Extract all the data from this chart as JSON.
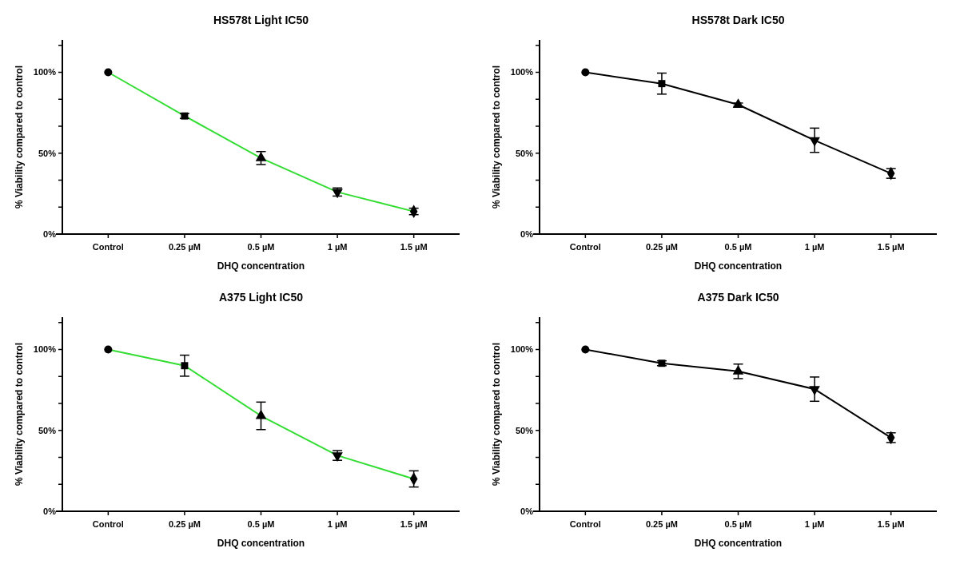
{
  "chart_data": [
    {
      "type": "line",
      "title": "HS578t Light IC50",
      "xlabel": "DHQ concentration",
      "ylabel": "% Viability compared to control",
      "categories": [
        "Control",
        "0.25 µM",
        "0.5 µM",
        "1 µM",
        "1.5 µM"
      ],
      "ylim": [
        0,
        120
      ],
      "yticks": [
        {
          "value": 0,
          "label": "0%"
        },
        {
          "value": 16.67,
          "label": null
        },
        {
          "value": 33.33,
          "label": null
        },
        {
          "value": 50,
          "label": "50%"
        },
        {
          "value": 66.67,
          "label": null
        },
        {
          "value": 83.33,
          "label": null
        },
        {
          "value": 100,
          "label": "100%"
        },
        {
          "value": 116.67,
          "label": null
        }
      ],
      "grid": false,
      "series": [
        {
          "type": "line",
          "color": "#33dd33",
          "marker": "none",
          "values": [
            100,
            73,
            47,
            26,
            14
          ]
        },
        {
          "type": "scatter",
          "color": "#000000",
          "marker": "circle",
          "values": [
            100,
            null,
            null,
            null,
            null
          ],
          "errors": [
            null,
            null,
            null,
            null,
            null
          ]
        },
        {
          "type": "scatter",
          "color": "#000000",
          "marker": "square",
          "values": [
            null,
            73,
            null,
            null,
            null
          ],
          "errors": [
            null,
            1.5,
            null,
            null,
            null
          ]
        },
        {
          "type": "scatter",
          "color": "#000000",
          "marker": "triangle",
          "values": [
            null,
            null,
            47,
            null,
            null
          ],
          "errors": [
            null,
            null,
            4,
            null,
            null
          ]
        },
        {
          "type": "scatter",
          "color": "#000000",
          "marker": "triangle-down",
          "values": [
            null,
            null,
            null,
            26,
            null
          ],
          "errors": [
            null,
            null,
            null,
            2.5,
            null
          ]
        },
        {
          "type": "scatter",
          "color": "#000000",
          "marker": "diamond",
          "values": [
            null,
            null,
            null,
            null,
            14
          ],
          "errors": [
            null,
            null,
            null,
            null,
            2
          ]
        }
      ]
    },
    {
      "type": "line",
      "title": "HS578t Dark IC50",
      "xlabel": "DHQ concentration",
      "ylabel": "% Viability compared to control",
      "categories": [
        "Control",
        "0.25 µM",
        "0.5 µM",
        "1 µM",
        "1.5 µM"
      ],
      "ylim": [
        0,
        120
      ],
      "yticks": [
        {
          "value": 0,
          "label": "0%"
        },
        {
          "value": 16.67,
          "label": null
        },
        {
          "value": 33.33,
          "label": null
        },
        {
          "value": 50,
          "label": "50%"
        },
        {
          "value": 66.67,
          "label": null
        },
        {
          "value": 83.33,
          "label": null
        },
        {
          "value": 100,
          "label": "100%"
        },
        {
          "value": 116.67,
          "label": null
        }
      ],
      "grid": false,
      "series": [
        {
          "type": "line",
          "color": "#000000",
          "marker": "none",
          "values": [
            100,
            93,
            80,
            58,
            37.5
          ]
        },
        {
          "type": "scatter",
          "color": "#000000",
          "marker": "circle",
          "values": [
            100,
            null,
            null,
            null,
            null
          ],
          "errors": [
            null,
            null,
            null,
            null,
            null
          ]
        },
        {
          "type": "scatter",
          "color": "#000000",
          "marker": "square",
          "values": [
            null,
            93,
            null,
            null,
            null
          ],
          "errors": [
            null,
            6.5,
            null,
            null,
            null
          ]
        },
        {
          "type": "scatter",
          "color": "#000000",
          "marker": "triangle",
          "values": [
            null,
            null,
            80,
            null,
            null
          ],
          "errors": [
            null,
            null,
            1,
            null,
            null
          ]
        },
        {
          "type": "scatter",
          "color": "#000000",
          "marker": "triangle-down",
          "values": [
            null,
            null,
            null,
            58,
            null
          ],
          "errors": [
            null,
            null,
            null,
            7.5,
            null
          ]
        },
        {
          "type": "scatter",
          "color": "#000000",
          "marker": "diamond",
          "values": [
            null,
            null,
            null,
            null,
            37.5
          ],
          "errors": [
            null,
            null,
            null,
            null,
            3
          ]
        }
      ]
    },
    {
      "type": "line",
      "title": "A375 Light IC50",
      "xlabel": "DHQ concentration",
      "ylabel": "% Viability compared to control",
      "categories": [
        "Control",
        "0.25 µM",
        "0.5 µM",
        "1 µM",
        "1.5 µM"
      ],
      "ylim": [
        0,
        120
      ],
      "yticks": [
        {
          "value": 0,
          "label": "0%"
        },
        {
          "value": 16.67,
          "label": null
        },
        {
          "value": 33.33,
          "label": null
        },
        {
          "value": 50,
          "label": "50%"
        },
        {
          "value": 66.67,
          "label": null
        },
        {
          "value": 83.33,
          "label": null
        },
        {
          "value": 100,
          "label": "100%"
        },
        {
          "value": 116.67,
          "label": null
        }
      ],
      "grid": false,
      "series": [
        {
          "type": "line",
          "color": "#33dd33",
          "marker": "none",
          "values": [
            100,
            90,
            59,
            34.5,
            20
          ]
        },
        {
          "type": "scatter",
          "color": "#000000",
          "marker": "circle",
          "values": [
            100,
            null,
            null,
            null,
            null
          ],
          "errors": [
            null,
            null,
            null,
            null,
            null
          ]
        },
        {
          "type": "scatter",
          "color": "#000000",
          "marker": "square",
          "values": [
            null,
            90,
            null,
            null,
            null
          ],
          "errors": [
            null,
            6.5,
            null,
            null,
            null
          ]
        },
        {
          "type": "scatter",
          "color": "#000000",
          "marker": "triangle",
          "values": [
            null,
            null,
            59,
            null,
            null
          ],
          "errors": [
            null,
            null,
            8.5,
            null,
            null
          ]
        },
        {
          "type": "scatter",
          "color": "#000000",
          "marker": "triangle-down",
          "values": [
            null,
            null,
            null,
            34.5,
            null
          ],
          "errors": [
            null,
            null,
            null,
            3,
            null
          ]
        },
        {
          "type": "scatter",
          "color": "#000000",
          "marker": "diamond",
          "values": [
            null,
            null,
            null,
            null,
            20
          ],
          "errors": [
            null,
            null,
            null,
            null,
            5
          ]
        }
      ]
    },
    {
      "type": "line",
      "title": "A375 Dark IC50",
      "xlabel": "DHQ concentration",
      "ylabel": "% Viability compared to control",
      "categories": [
        "Control",
        "0.25 µM",
        "0.5 µM",
        "1 µM",
        "1.5 µM"
      ],
      "ylim": [
        0,
        120
      ],
      "yticks": [
        {
          "value": 0,
          "label": "0%"
        },
        {
          "value": 16.67,
          "label": null
        },
        {
          "value": 33.33,
          "label": null
        },
        {
          "value": 50,
          "label": "50%"
        },
        {
          "value": 66.67,
          "label": null
        },
        {
          "value": 83.33,
          "label": null
        },
        {
          "value": 100,
          "label": "100%"
        },
        {
          "value": 116.67,
          "label": null
        }
      ],
      "grid": false,
      "series": [
        {
          "type": "line",
          "color": "#000000",
          "marker": "none",
          "values": [
            100,
            91.5,
            86.5,
            75.5,
            45.5
          ]
        },
        {
          "type": "scatter",
          "color": "#000000",
          "marker": "circle",
          "values": [
            100,
            null,
            null,
            null,
            null
          ],
          "errors": [
            null,
            null,
            null,
            null,
            null
          ]
        },
        {
          "type": "scatter",
          "color": "#000000",
          "marker": "square",
          "values": [
            null,
            91.5,
            null,
            null,
            null
          ],
          "errors": [
            null,
            1.5,
            null,
            null,
            null
          ]
        },
        {
          "type": "scatter",
          "color": "#000000",
          "marker": "triangle",
          "values": [
            null,
            null,
            86.5,
            null,
            null
          ],
          "errors": [
            null,
            null,
            4.5,
            null,
            null
          ]
        },
        {
          "type": "scatter",
          "color": "#000000",
          "marker": "triangle-down",
          "values": [
            null,
            null,
            null,
            75.5,
            null
          ],
          "errors": [
            null,
            null,
            null,
            7.5,
            null
          ]
        },
        {
          "type": "scatter",
          "color": "#000000",
          "marker": "diamond",
          "values": [
            null,
            null,
            null,
            null,
            45.5
          ],
          "errors": [
            null,
            null,
            null,
            null,
            3
          ]
        }
      ]
    }
  ]
}
